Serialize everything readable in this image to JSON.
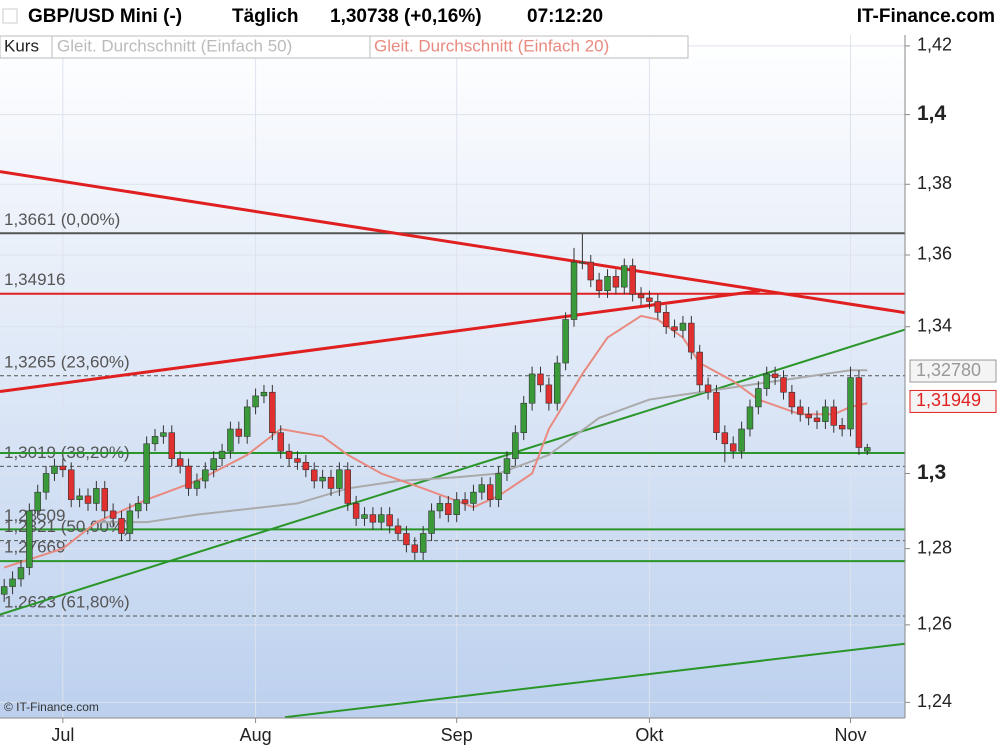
{
  "chart_data": {
    "type": "candlestick",
    "header": {
      "title": "GBP/USD Mini (-)",
      "period": "Täglich",
      "quote": "1,30738 (+0,16%)",
      "time": "07:12:20",
      "brand": "IT-Finance.com"
    },
    "legend": [
      "Kurs",
      "Gleit. Durchschnitt (Einfach 50)",
      "Gleit. Durchschnitt (Einfach 20)"
    ],
    "watermark": "© IT-Finance.com",
    "log_scale": true,
    "grid": true,
    "up_color": "#3a9a3a",
    "down_color": "#e0302f",
    "xlim": [
      -0.5,
      107.5
    ],
    "ylim": [
      1.236,
      1.4232
    ],
    "yticks": [
      {
        "value": 1.24,
        "label": "1,24"
      },
      {
        "value": 1.26,
        "label": "1,26"
      },
      {
        "value": 1.28,
        "label": "1,28"
      },
      {
        "value": 1.3,
        "label": "1,3"
      },
      {
        "value": 1.34,
        "label": "1,34"
      },
      {
        "value": 1.36,
        "label": "1,36"
      },
      {
        "value": 1.38,
        "label": "1,38"
      },
      {
        "value": 1.4,
        "label": "1,4"
      },
      {
        "value": 1.42,
        "label": "1,42"
      }
    ],
    "categories": [
      null,
      null,
      null,
      null,
      null,
      null,
      null,
      "Jul",
      null,
      null,
      null,
      null,
      null,
      null,
      null,
      null,
      null,
      null,
      null,
      null,
      null,
      null,
      null,
      null,
      null,
      null,
      null,
      null,
      null,
      null,
      "Aug",
      null,
      null,
      null,
      null,
      null,
      null,
      null,
      null,
      null,
      null,
      null,
      null,
      null,
      null,
      null,
      null,
      null,
      null,
      null,
      null,
      null,
      null,
      null,
      "Sep",
      null,
      null,
      null,
      null,
      null,
      null,
      null,
      null,
      null,
      null,
      null,
      null,
      null,
      null,
      null,
      null,
      null,
      null,
      null,
      null,
      null,
      null,
      "Okt",
      null,
      null,
      null,
      null,
      null,
      null,
      null,
      null,
      null,
      null,
      null,
      null,
      null,
      null,
      null,
      null,
      null,
      null,
      null,
      null,
      null,
      null,
      null,
      "Nov",
      null,
      null
    ],
    "open": [
      1.268,
      1.27,
      1.272,
      1.275,
      1.29,
      1.295,
      1.3,
      1.302,
      1.301,
      1.293,
      1.294,
      1.292,
      1.296,
      1.29,
      1.288,
      1.284,
      1.29,
      1.292,
      1.308,
      1.31,
      1.311,
      1.304,
      1.302,
      1.296,
      1.298,
      1.301,
      1.304,
      1.306,
      1.312,
      1.31,
      1.318,
      1.321,
      1.322,
      1.311,
      1.306,
      1.304,
      1.303,
      1.301,
      1.298,
      1.299,
      1.296,
      1.301,
      1.292,
      1.288,
      1.289,
      1.287,
      1.289,
      1.286,
      1.284,
      1.281,
      1.279,
      1.284,
      1.29,
      1.292,
      1.289,
      1.293,
      1.292,
      1.295,
      1.297,
      1.293,
      1.3,
      1.304,
      1.311,
      1.319,
      1.327,
      1.324,
      1.319,
      1.33,
      1.342,
      1.358,
      1.358,
      1.353,
      1.35,
      1.354,
      1.351,
      1.357,
      1.349,
      1.348,
      1.347,
      1.344,
      1.34,
      1.339,
      1.341,
      1.333,
      1.324,
      1.322,
      1.311,
      1.308,
      1.306,
      1.312,
      1.318,
      1.323,
      1.327,
      1.326,
      1.322,
      1.318,
      1.316,
      1.315,
      1.314,
      1.318,
      1.313,
      1.312,
      1.326,
      1.306
    ],
    "high": [
      1.272,
      1.274,
      1.277,
      1.292,
      1.297,
      1.302,
      1.304,
      1.304,
      1.303,
      1.296,
      1.296,
      1.298,
      1.298,
      1.292,
      1.29,
      1.292,
      1.294,
      1.31,
      1.312,
      1.313,
      1.313,
      1.306,
      1.304,
      1.3,
      1.303,
      1.306,
      1.308,
      1.314,
      1.314,
      1.32,
      1.323,
      1.324,
      1.324,
      1.313,
      1.308,
      1.306,
      1.305,
      1.303,
      1.301,
      1.301,
      1.303,
      1.303,
      1.294,
      1.291,
      1.291,
      1.291,
      1.291,
      1.288,
      1.286,
      1.283,
      1.286,
      1.292,
      1.294,
      1.294,
      1.295,
      1.295,
      1.297,
      1.299,
      1.299,
      1.302,
      1.306,
      1.313,
      1.321,
      1.329,
      1.329,
      1.326,
      1.332,
      1.344,
      1.362,
      1.366,
      1.36,
      1.355,
      1.356,
      1.356,
      1.359,
      1.359,
      1.351,
      1.35,
      1.349,
      1.346,
      1.342,
      1.343,
      1.343,
      1.335,
      1.326,
      1.324,
      1.313,
      1.31,
      1.314,
      1.32,
      1.325,
      1.329,
      1.329,
      1.328,
      1.324,
      1.32,
      1.318,
      1.317,
      1.32,
      1.32,
      1.315,
      1.329,
      1.328,
      1.308
    ],
    "low": [
      1.266,
      1.268,
      1.27,
      1.273,
      1.288,
      1.293,
      1.298,
      1.299,
      1.291,
      1.291,
      1.29,
      1.29,
      1.288,
      1.286,
      1.282,
      1.282,
      1.288,
      1.29,
      1.306,
      1.308,
      1.302,
      1.3,
      1.294,
      1.294,
      1.296,
      1.299,
      1.302,
      1.304,
      1.308,
      1.308,
      1.316,
      1.319,
      1.309,
      1.304,
      1.302,
      1.301,
      1.299,
      1.296,
      1.296,
      1.294,
      1.294,
      1.29,
      1.286,
      1.286,
      1.285,
      1.285,
      1.284,
      1.282,
      1.279,
      1.277,
      1.277,
      1.282,
      1.288,
      1.287,
      1.287,
      1.29,
      1.29,
      1.293,
      1.291,
      1.291,
      1.298,
      1.302,
      1.309,
      1.317,
      1.322,
      1.317,
      1.317,
      1.328,
      1.34,
      1.356,
      1.351,
      1.348,
      1.348,
      1.349,
      1.349,
      1.347,
      1.346,
      1.345,
      1.342,
      1.338,
      1.337,
      1.337,
      1.331,
      1.322,
      1.32,
      1.309,
      1.303,
      1.304,
      1.304,
      1.31,
      1.316,
      1.321,
      1.324,
      1.32,
      1.316,
      1.314,
      1.313,
      1.312,
      1.312,
      1.311,
      1.31,
      1.31,
      1.305,
      1.305
    ],
    "close": [
      1.27,
      1.272,
      1.275,
      1.29,
      1.295,
      1.3,
      1.302,
      1.301,
      1.293,
      1.294,
      1.292,
      1.296,
      1.29,
      1.288,
      1.284,
      1.29,
      1.292,
      1.308,
      1.31,
      1.311,
      1.304,
      1.302,
      1.296,
      1.298,
      1.301,
      1.304,
      1.306,
      1.312,
      1.31,
      1.318,
      1.321,
      1.322,
      1.311,
      1.306,
      1.304,
      1.303,
      1.301,
      1.298,
      1.299,
      1.296,
      1.301,
      1.292,
      1.288,
      1.289,
      1.287,
      1.289,
      1.286,
      1.284,
      1.281,
      1.279,
      1.284,
      1.29,
      1.292,
      1.289,
      1.293,
      1.292,
      1.295,
      1.297,
      1.293,
      1.3,
      1.304,
      1.311,
      1.319,
      1.327,
      1.324,
      1.319,
      1.33,
      1.342,
      1.358,
      1.358,
      1.353,
      1.35,
      1.354,
      1.351,
      1.357,
      1.349,
      1.348,
      1.347,
      1.344,
      1.34,
      1.339,
      1.341,
      1.333,
      1.324,
      1.322,
      1.311,
      1.308,
      1.306,
      1.312,
      1.318,
      1.323,
      1.327,
      1.326,
      1.322,
      1.318,
      1.316,
      1.315,
      1.314,
      1.318,
      1.313,
      1.312,
      1.326,
      1.307,
      1.307
    ],
    "series": [
      {
        "name": "Gleit. Durchschnitt (Einfach 50)",
        "color": "#aaaaaa",
        "x": [
          11,
          17,
          23,
          35,
          41,
          47,
          54,
          59,
          65,
          71,
          77,
          83,
          89,
          95,
          101,
          103
        ],
        "values": [
          1.287,
          1.287,
          1.289,
          1.292,
          1.296,
          1.298,
          1.299,
          1.3,
          1.305,
          1.315,
          1.32,
          1.322,
          1.324,
          1.326,
          1.328,
          1.328
        ]
      },
      {
        "name": "Gleit. Durchschnitt (Einfach 20)",
        "color": "#e98a80",
        "x": [
          0,
          7,
          11,
          17,
          23,
          29,
          33,
          38,
          41,
          45,
          50,
          56,
          59,
          63,
          65,
          69,
          72,
          76,
          78,
          81,
          83,
          87,
          90,
          95,
          99,
          101,
          103
        ],
        "values": [
          1.275,
          1.28,
          1.287,
          1.293,
          1.298,
          1.305,
          1.312,
          1.31,
          1.305,
          1.3,
          1.296,
          1.291,
          1.294,
          1.3,
          1.312,
          1.327,
          1.337,
          1.343,
          1.342,
          1.337,
          1.33,
          1.325,
          1.32,
          1.316,
          1.316,
          1.318,
          1.319
        ]
      }
    ],
    "levels": [
      {
        "value": 1.3661,
        "label": "1,3661 (0,00%)",
        "color": "#555555",
        "dashed": false
      },
      {
        "value": 1.34916,
        "label": "1,34916",
        "color": "#e02020",
        "dashed": false
      },
      {
        "value": 1.3265,
        "label": "1,3265 (23,60%)",
        "color": "#555555",
        "dashed": true
      },
      {
        "value": 1.3019,
        "label": "1,3019 (38,20%)",
        "color": "#555555",
        "dashed": true
      },
      {
        "value": 1.28509,
        "label": "1,28509",
        "color": "#2a962a",
        "dashed": false
      },
      {
        "value": 1.2821,
        "label": "1,2821 (50,00%)",
        "color": "#555555",
        "dashed": true
      },
      {
        "value": 1.27669,
        "label": "1,27669",
        "color": "#2a962a",
        "dashed": false
      },
      {
        "value": 1.2623,
        "label": "1,2623 (61,80%)",
        "color": "#555555",
        "dashed": true
      }
    ],
    "hlines": [
      {
        "value": 1.3055,
        "color": "#2a962a"
      }
    ],
    "trendlines": [
      {
        "color": "#e02020",
        "x": [
          -0.5,
          107.5
        ],
        "y": [
          1.3836,
          1.3439
        ]
      },
      {
        "color": "#e02020",
        "x": [
          -0.5,
          90.2
        ],
        "y": [
          1.3222,
          1.35
        ]
      },
      {
        "color": "#2a962a",
        "x": [
          -0.5,
          107.5
        ],
        "y": [
          1.2627,
          1.3392
        ]
      },
      {
        "color": "#2a962a",
        "x": [
          33.5,
          107.5
        ],
        "y": [
          1.2362,
          1.2551
        ]
      }
    ],
    "price_markers": [
      {
        "value": 1.3278,
        "label": "1,32780",
        "color": "#999999"
      },
      {
        "value": 1.31949,
        "label": "1,31949",
        "color": "#e02020"
      }
    ]
  }
}
